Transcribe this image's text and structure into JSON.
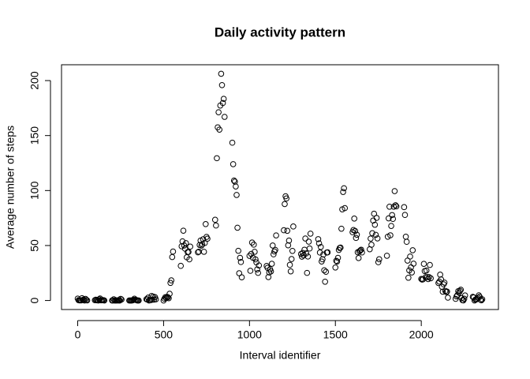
{
  "chart_data": {
    "type": "scatter",
    "title": "Daily activity pattern",
    "x_label": "Interval identifier",
    "y_label": "Average number of steps",
    "color": "#000000",
    "xlim": [
      -94.2,
      2449.2
    ],
    "ylim": [
      -8.2,
      214.4
    ],
    "xticks": [
      0,
      500,
      1000,
      1500,
      2000
    ],
    "yticks": [
      0,
      50,
      100,
      150,
      200
    ],
    "x": [
      0,
      5,
      10,
      15,
      20,
      25,
      30,
      35,
      40,
      45,
      50,
      55,
      100,
      105,
      110,
      115,
      120,
      125,
      130,
      135,
      140,
      145,
      150,
      155,
      200,
      205,
      210,
      215,
      220,
      225,
      230,
      235,
      240,
      245,
      250,
      255,
      300,
      305,
      310,
      315,
      320,
      325,
      330,
      335,
      340,
      345,
      350,
      355,
      400,
      405,
      410,
      415,
      420,
      425,
      430,
      435,
      440,
      445,
      450,
      455,
      500,
      505,
      510,
      515,
      520,
      525,
      530,
      535,
      540,
      545,
      550,
      555,
      600,
      605,
      610,
      615,
      620,
      625,
      630,
      635,
      640,
      645,
      650,
      655,
      700,
      705,
      710,
      715,
      720,
      725,
      730,
      735,
      740,
      745,
      750,
      755,
      800,
      805,
      810,
      815,
      820,
      825,
      830,
      835,
      840,
      845,
      850,
      855,
      900,
      905,
      910,
      915,
      920,
      925,
      930,
      935,
      940,
      945,
      950,
      955,
      1000,
      1005,
      1010,
      1015,
      1020,
      1025,
      1030,
      1035,
      1040,
      1045,
      1050,
      1055,
      1100,
      1105,
      1110,
      1115,
      1120,
      1125,
      1130,
      1135,
      1140,
      1145,
      1150,
      1155,
      1200,
      1205,
      1210,
      1215,
      1220,
      1225,
      1230,
      1235,
      1240,
      1245,
      1250,
      1255,
      1300,
      1305,
      1310,
      1315,
      1320,
      1325,
      1330,
      1335,
      1340,
      1345,
      1350,
      1355,
      1400,
      1405,
      1410,
      1415,
      1420,
      1425,
      1430,
      1435,
      1440,
      1445,
      1450,
      1455,
      1500,
      1505,
      1510,
      1515,
      1520,
      1525,
      1530,
      1535,
      1540,
      1545,
      1550,
      1555,
      1600,
      1605,
      1610,
      1615,
      1620,
      1625,
      1630,
      1635,
      1640,
      1645,
      1650,
      1655,
      1700,
      1705,
      1710,
      1715,
      1720,
      1725,
      1730,
      1735,
      1740,
      1745,
      1750,
      1755,
      1800,
      1805,
      1810,
      1815,
      1820,
      1825,
      1830,
      1835,
      1840,
      1845,
      1850,
      1855,
      1900,
      1905,
      1910,
      1915,
      1920,
      1925,
      1930,
      1935,
      1940,
      1945,
      1950,
      1955,
      2000,
      2005,
      2010,
      2015,
      2020,
      2025,
      2030,
      2035,
      2040,
      2045,
      2050,
      2055,
      2100,
      2105,
      2110,
      2115,
      2120,
      2125,
      2130,
      2135,
      2140,
      2145,
      2150,
      2155,
      2200,
      2205,
      2210,
      2215,
      2220,
      2225,
      2230,
      2235,
      2240,
      2245,
      2250,
      2255,
      2300,
      2305,
      2310,
      2315,
      2320,
      2325,
      2330,
      2335,
      2340,
      2345,
      2350,
      2355
    ],
    "values": [
      1.7,
      0.3,
      0.1,
      0.2,
      0.1,
      2.1,
      0.5,
      0.9,
      0,
      1.5,
      0.3,
      0.1,
      0.3,
      0.7,
      0.2,
      0.3,
      0,
      1.1,
      1.8,
      0.2,
      0.2,
      0.4,
      0.3,
      0,
      0,
      0,
      1.1,
      0,
      0,
      0.1,
      0,
      0.2,
      0,
      0,
      1.5,
      0.9,
      0,
      0,
      0,
      0,
      0.2,
      0.6,
      1.6,
      0.6,
      0.5,
      0.1,
      0,
      0,
      1.2,
      0.9,
      2.6,
      0,
      0.3,
      0.4,
      4.1,
      0.7,
      3.5,
      0.8,
      3.1,
      1.1,
      0,
      1.6,
      3,
      2.2,
      3.3,
      3,
      2.1,
      6.1,
      16,
      18.3,
      39.5,
      44.5,
      31.5,
      49.3,
      53.8,
      63.5,
      50,
      47.1,
      52.2,
      39.3,
      44,
      44.2,
      37.4,
      49,
      43.8,
      44.4,
      50.5,
      54.5,
      49.9,
      51,
      55.7,
      44.3,
      52.3,
      69.5,
      57.8,
      56.2,
      73.4,
      68.2,
      129.4,
      157.5,
      171.2,
      155.4,
      177.3,
      206.2,
      195.9,
      179.6,
      183.4,
      167,
      143.5,
      124,
      109.1,
      108.1,
      103.7,
      96,
      66.2,
      45.2,
      24.8,
      38.8,
      35,
      21.1,
      40.6,
      27,
      42.4,
      52.7,
      38.9,
      50.8,
      44.3,
      37.4,
      34.7,
      28.3,
      25.1,
      31.9,
      31.4,
      29.7,
      21.3,
      25.5,
      28.4,
      26.5,
      33.4,
      50,
      42,
      44.6,
      46,
      59.2,
      63.9,
      87.7,
      94.8,
      92.8,
      63.4,
      50.2,
      54.5,
      32.4,
      26.5,
      37.7,
      45.1,
      67.3,
      42.3,
      39.9,
      43.3,
      41,
      46.2,
      56.4,
      42.8,
      25.1,
      40,
      53.5,
      47.3,
      60.8,
      55.8,
      52,
      43.6,
      48.7,
      35.5,
      37.5,
      41.8,
      27.5,
      17.1,
      26.1,
      43.6,
      43.8,
      30,
      36.1,
      35.5,
      38.8,
      46,
      47.8,
      48.1,
      65.3,
      82.9,
      98.7,
      102.1,
      84,
      62.1,
      64.1,
      74.5,
      63.2,
      56.9,
      59.8,
      43.9,
      38.6,
      44.7,
      45.5,
      46.2,
      43.7,
      46.6,
      56.3,
      50.7,
      61.2,
      72.7,
      78.9,
      68.9,
      59.7,
      75.1,
      56.5,
      34.8,
      37.5,
      40.7,
      58,
      74.7,
      85.3,
      59.3,
      67.8,
      77.7,
      74.2,
      85.3,
      99.5,
      86.6,
      85.6,
      84.9,
      77.8,
      58,
      53.4,
      36.3,
      20.7,
      27.4,
      40,
      30.2,
      25.5,
      45.7,
      33.5,
      19.6,
      19,
      19.3,
      33.3,
      26.8,
      21.2,
      27.3,
      21.3,
      19.5,
      21.3,
      32.3,
      20.2,
      15.9,
      17.2,
      23.5,
      19.2,
      12.5,
      8,
      14.7,
      16.3,
      8.7,
      7.8,
      8.1,
      2.6,
      1.5,
      3.7,
      4.8,
      8.5,
      7.1,
      8.7,
      9.8,
      2.2,
      0.3,
      0.1,
      1.6,
      4.6,
      3.3,
      2.8,
      0,
      0.8,
      1,
      1.6,
      2.6,
      4.7,
      3.3,
      0.6,
      0.2,
      1.1
    ]
  }
}
